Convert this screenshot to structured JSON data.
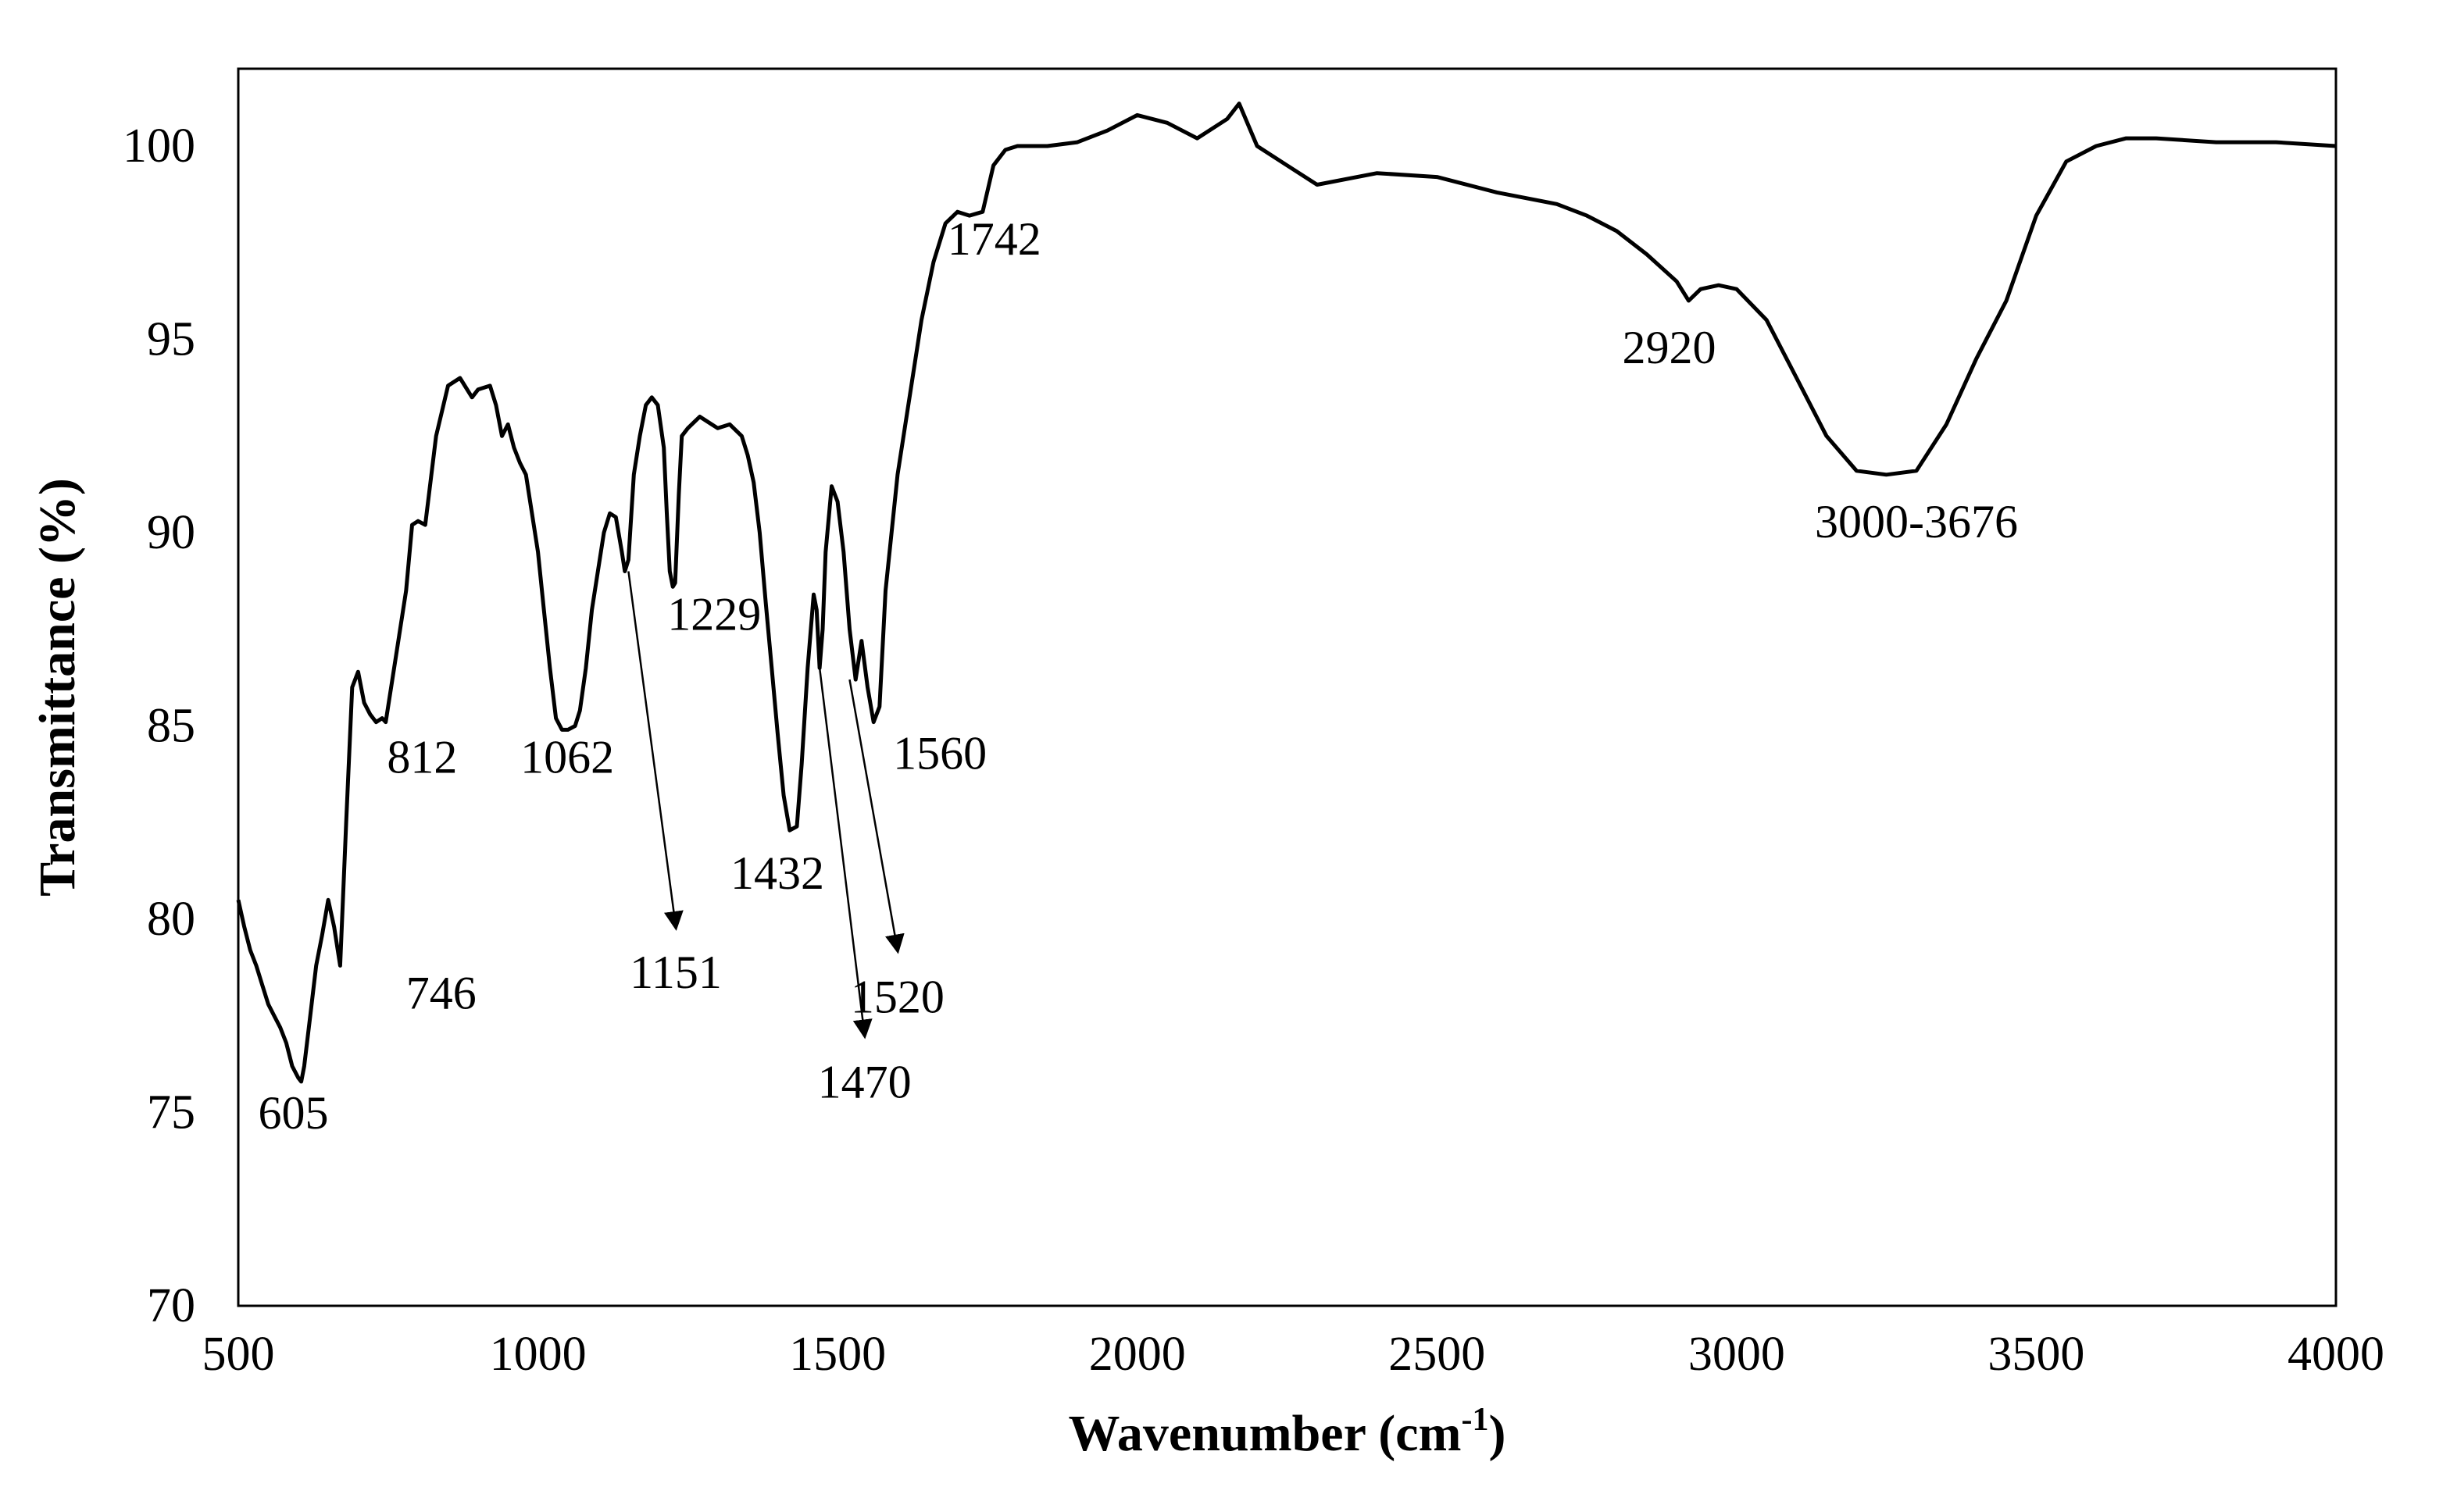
{
  "chart_data": {
    "type": "line",
    "xlabel": "Wavenumber (cm",
    "xlabel_sup": "-1",
    "xlabel_close": ")",
    "ylabel": "Transmittance (%)",
    "xlim": [
      500,
      4000
    ],
    "ylim": [
      70,
      102
    ],
    "xticks": [
      "500",
      "1000",
      "1500",
      "2000",
      "2500",
      "3000",
      "3500",
      "4000"
    ],
    "yticks": [
      "70",
      "75",
      "80",
      "85",
      "90",
      "95",
      "100"
    ],
    "grid": false,
    "line_color": "#000000",
    "series": [
      {
        "x": [
          500,
          510,
          520,
          530,
          540,
          550,
          560,
          570,
          580,
          590,
          600,
          605,
          610,
          620,
          630,
          640,
          650,
          660,
          670,
          680,
          690,
          700,
          710,
          720,
          730,
          740,
          746,
          760,
          780,
          790,
          800,
          812,
          830,
          850,
          870,
          890,
          900,
          920,
          930,
          940,
          950,
          960,
          970,
          980,
          990,
          1000,
          1010,
          1020,
          1030,
          1040,
          1050,
          1062,
          1070,
          1080,
          1090,
          1100,
          1110,
          1120,
          1130,
          1140,
          1145,
          1151,
          1160,
          1170,
          1180,
          1190,
          1200,
          1210,
          1215,
          1220,
          1225,
          1229,
          1235,
          1240,
          1250,
          1270,
          1290,
          1300,
          1320,
          1340,
          1350,
          1360,
          1370,
          1380,
          1390,
          1400,
          1410,
          1420,
          1432,
          1440,
          1450,
          1460,
          1465,
          1470,
          1475,
          1480,
          1490,
          1500,
          1510,
          1520,
          1530,
          1540,
          1550,
          1560,
          1570,
          1580,
          1600,
          1620,
          1640,
          1660,
          1680,
          1700,
          1720,
          1742,
          1760,
          1780,
          1800,
          1850,
          1900,
          1950,
          2000,
          2050,
          2100,
          2150,
          2170,
          2200,
          2250,
          2300,
          2400,
          2500,
          2600,
          2700,
          2750,
          2800,
          2850,
          2900,
          2920,
          2940,
          2970,
          3000,
          3050,
          3100,
          3150,
          3200,
          3250,
          3300,
          3350,
          3400,
          3450,
          3500,
          3550,
          3600,
          3650,
          3700,
          3800,
          3900,
          4000
        ],
        "y": [
          80.5,
          79.8,
          79.2,
          78.8,
          78.3,
          77.8,
          77.5,
          77.2,
          76.8,
          76.2,
          75.9,
          75.8,
          76.2,
          77.5,
          78.8,
          79.6,
          80.5,
          79.8,
          78.8,
          82.5,
          86.0,
          86.4,
          85.6,
          85.3,
          85.1,
          85.2,
          85.1,
          86.5,
          88.5,
          90.2,
          90.3,
          90.2,
          92.5,
          93.8,
          94.0,
          93.5,
          93.7,
          93.8,
          93.3,
          92.5,
          92.8,
          92.2,
          91.8,
          91.5,
          90.5,
          89.5,
          88.0,
          86.5,
          85.2,
          84.9,
          84.9,
          85.0,
          85.4,
          86.5,
          88.0,
          89.0,
          90.0,
          90.5,
          90.4,
          89.5,
          89.0,
          89.3,
          91.5,
          92.5,
          93.3,
          93.5,
          93.3,
          92.2,
          90.5,
          89.0,
          88.6,
          88.7,
          91.0,
          92.5,
          92.7,
          93.0,
          92.8,
          92.7,
          92.8,
          92.5,
          92.0,
          91.3,
          90.0,
          88.2,
          86.5,
          84.8,
          83.2,
          82.3,
          82.4,
          84.0,
          86.5,
          88.4,
          88.0,
          86.5,
          87.5,
          89.5,
          91.2,
          90.8,
          89.5,
          87.5,
          86.2,
          87.2,
          86.0,
          85.1,
          85.5,
          88.5,
          91.5,
          93.5,
          95.5,
          97.0,
          98.0,
          98.3,
          98.2,
          98.3,
          99.5,
          99.9,
          100.0,
          100.0,
          100.1,
          100.4,
          100.8,
          100.6,
          100.2,
          100.7,
          101.1,
          100.0,
          99.5,
          99.0,
          99.3,
          99.2,
          98.8,
          98.5,
          98.2,
          97.8,
          97.2,
          96.5,
          96.0,
          96.3,
          96.4,
          96.3,
          95.5,
          94.0,
          92.5,
          91.6,
          91.5,
          91.6,
          92.8,
          94.5,
          96.0,
          98.2,
          99.6,
          100.0,
          100.2,
          100.2,
          100.1,
          100.1,
          100.0
        ]
      }
    ],
    "annotations": [
      {
        "text": "605",
        "x": 605,
        "y": 75.8
      },
      {
        "text": "746",
        "x": 746,
        "y": 78.9
      },
      {
        "text": "812",
        "x": 812,
        "y": 85.1
      },
      {
        "text": "1062",
        "x": 1062,
        "y": 85.0
      },
      {
        "text": "1151",
        "x": 1151,
        "y": 89.0,
        "arrow": true
      },
      {
        "text": "1229",
        "x": 1229,
        "y": 88.7
      },
      {
        "text": "1432",
        "x": 1432,
        "y": 82.3
      },
      {
        "text": "1470",
        "x": 1470,
        "y": 86.5,
        "arrow": true
      },
      {
        "text": "1520",
        "x": 1520,
        "y": 86.2,
        "arrow": true
      },
      {
        "text": "1560",
        "x": 1560,
        "y": 85.1
      },
      {
        "text": "1742",
        "x": 1742,
        "y": 98.3
      },
      {
        "text": "2920",
        "x": 2920,
        "y": 96.0
      },
      {
        "text": "3000-3676",
        "x": 3300,
        "y": 91.5
      }
    ]
  }
}
